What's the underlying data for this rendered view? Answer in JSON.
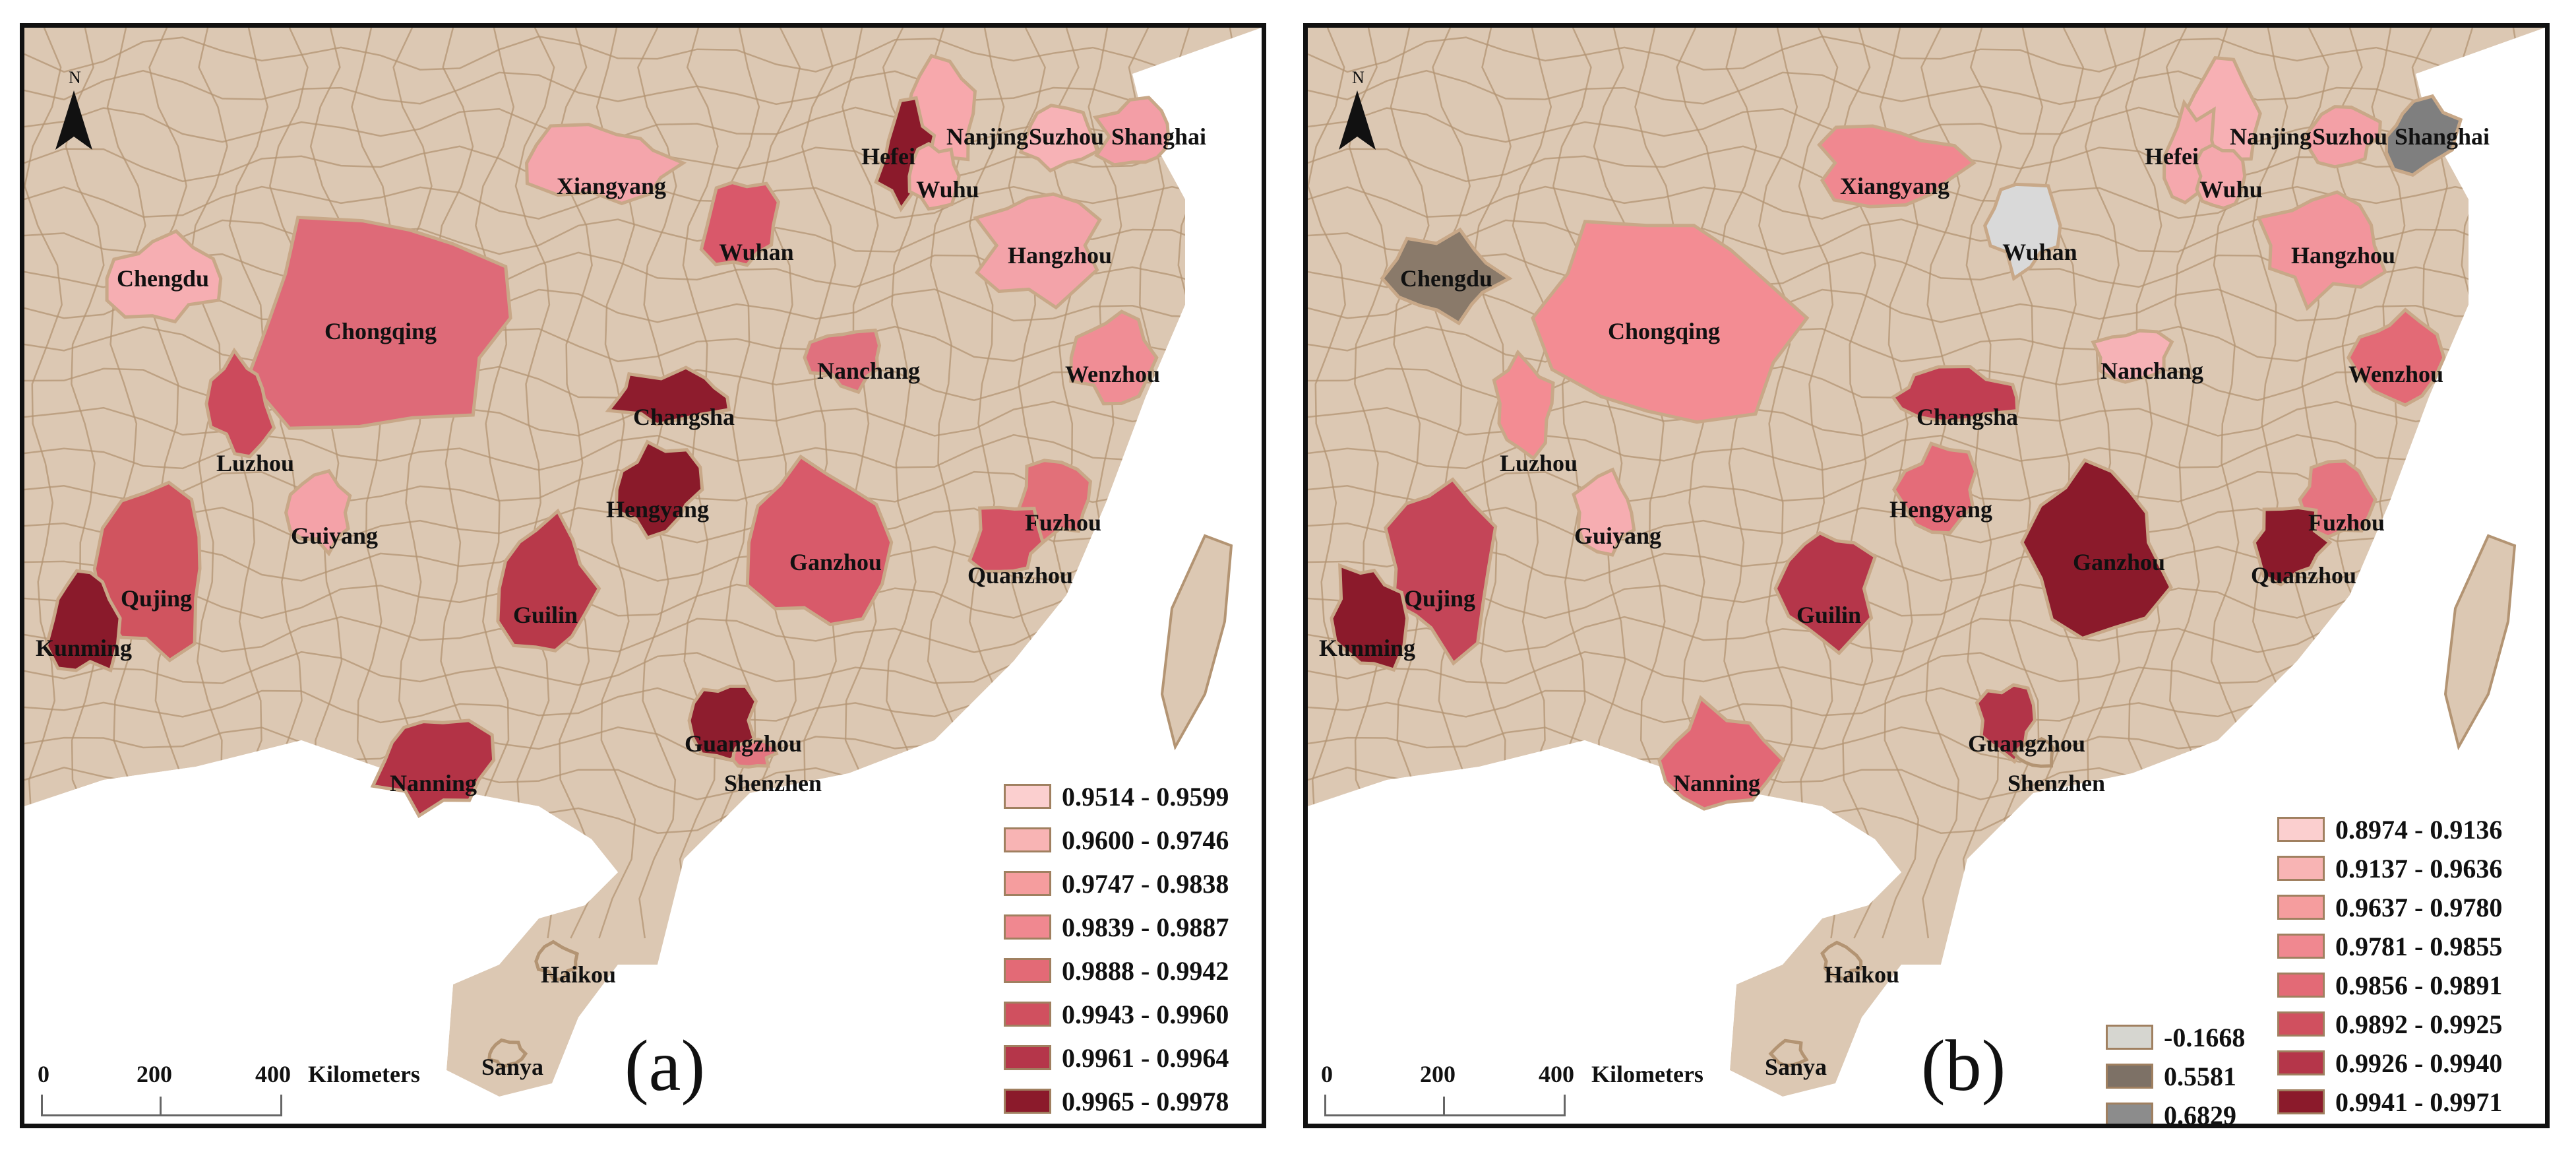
{
  "north_label": "N",
  "scale": {
    "ticks": [
      "0",
      "200",
      "400"
    ],
    "unit": "Kilometers"
  },
  "colors": {
    "base": "#dcc8b3",
    "border": "#b39473",
    "sea": "#ffffff"
  },
  "panels": [
    {
      "letter": "(a)",
      "cities": [
        {
          "name": "Nanjing",
          "color": "#f7a8ac"
        },
        {
          "name": "Hefei",
          "color": "#8b1a2b"
        },
        {
          "name": "Wuhu",
          "color": "#f7a8ac"
        },
        {
          "name": "Suzhou",
          "color": "#f7b2b6"
        },
        {
          "name": "Shanghai",
          "color": "#f39ea6"
        },
        {
          "name": "Xiangyang",
          "color": "#f4a5ab"
        },
        {
          "name": "Wuhan",
          "color": "#d9586a"
        },
        {
          "name": "Hangzhou",
          "color": "#f3a3a9"
        },
        {
          "name": "Chengdu",
          "color": "#f6aeb2"
        },
        {
          "name": "Chongqing",
          "color": "#de6a78"
        },
        {
          "name": "Nanchang",
          "color": "#e0717e"
        },
        {
          "name": "Wenzhou",
          "color": "#f08d95"
        },
        {
          "name": "Changsha",
          "color": "#8e1c2d"
        },
        {
          "name": "Luzhou",
          "color": "#cc4a5c"
        },
        {
          "name": "Hengyang",
          "color": "#8a1a2a"
        },
        {
          "name": "Fuzhou",
          "color": "#e27079"
        },
        {
          "name": "Guiyang",
          "color": "#f4a2a8"
        },
        {
          "name": "Ganzhou",
          "color": "#d85a6a"
        },
        {
          "name": "Quanzhou",
          "color": "#d35264"
        },
        {
          "name": "Qujing",
          "color": "#d0545f"
        },
        {
          "name": "Guilin",
          "color": "#b8394a"
        },
        {
          "name": "Kunming",
          "color": "#8a1a2b"
        },
        {
          "name": "Guangzhou",
          "color": "#8e1d2e"
        },
        {
          "name": "Shenzhen",
          "color": "#e37680"
        },
        {
          "name": "Nanning",
          "color": "#b33346"
        },
        {
          "name": "Haikou",
          "color": "#dcc8b3"
        },
        {
          "name": "Sanya",
          "color": "#dcc8b3"
        }
      ],
      "legend": [
        {
          "label": "0.9514 - 0.9599",
          "color": "#fbcfcf"
        },
        {
          "label": "0.9600 - 0.9746",
          "color": "#f8b4b4"
        },
        {
          "label": "0.9747 - 0.9838",
          "color": "#f59d9e"
        },
        {
          "label": "0.9839 - 0.9887",
          "color": "#f08890"
        },
        {
          "label": "0.9888 - 0.9942",
          "color": "#e36a76"
        },
        {
          "label": "0.9943 - 0.9960",
          "color": "#d0505f"
        },
        {
          "label": "0.9961 - 0.9964",
          "color": "#b5364a"
        },
        {
          "label": "0.9965 - 0.9978",
          "color": "#8b1a2b"
        }
      ]
    },
    {
      "letter": "(b)",
      "cities": [
        {
          "name": "Nanjing",
          "color": "#f7b0b4"
        },
        {
          "name": "Hefei",
          "color": "#f5a8ad"
        },
        {
          "name": "Wuhu",
          "color": "#f5a8ad"
        },
        {
          "name": "Suzhou",
          "color": "#f3a0a6"
        },
        {
          "name": "Shanghai",
          "color": "#7f7f7f"
        },
        {
          "name": "Xiangyang",
          "color": "#f08890"
        },
        {
          "name": "Wuhan",
          "color": "#d9d9d9"
        },
        {
          "name": "Hangzhou",
          "color": "#f2959c"
        },
        {
          "name": "Chengdu",
          "color": "#8a7a6a"
        },
        {
          "name": "Chongqing",
          "color": "#f38c93"
        },
        {
          "name": "Nanchang",
          "color": "#f6b2b6"
        },
        {
          "name": "Wenzhou",
          "color": "#e36a76"
        },
        {
          "name": "Changsha",
          "color": "#c13e52"
        },
        {
          "name": "Luzhou",
          "color": "#f38c93"
        },
        {
          "name": "Hengyang",
          "color": "#e46c79"
        },
        {
          "name": "Fuzhou",
          "color": "#e57580"
        },
        {
          "name": "Guiyang",
          "color": "#f6adb1"
        },
        {
          "name": "Ganzhou",
          "color": "#8b1a2b"
        },
        {
          "name": "Quanzhou",
          "color": "#8b1a2b"
        },
        {
          "name": "Qujing",
          "color": "#c44558"
        },
        {
          "name": "Guilin",
          "color": "#b5364a"
        },
        {
          "name": "Kunming",
          "color": "#8b1a2b"
        },
        {
          "name": "Guangzhou",
          "color": "#b23448"
        },
        {
          "name": "Shenzhen",
          "color": "#dcc8b3"
        },
        {
          "name": "Nanning",
          "color": "#e26876"
        },
        {
          "name": "Haikou",
          "color": "#dcc8b3"
        },
        {
          "name": "Sanya",
          "color": "#dcc8b3"
        }
      ],
      "legend_gray": [
        {
          "label": "-0.1668",
          "color": "#d6d6d0"
        },
        {
          "label": "0.5581",
          "color": "#7d7166"
        },
        {
          "label": "0.6829",
          "color": "#8c8c8c"
        }
      ],
      "legend": [
        {
          "label": "0.8974 - 0.9136",
          "color": "#fbcfcf"
        },
        {
          "label": "0.9137 - 0.9636",
          "color": "#f8b4b4"
        },
        {
          "label": "0.9637 - 0.9780",
          "color": "#f59d9e"
        },
        {
          "label": "0.9781 - 0.9855",
          "color": "#f08890"
        },
        {
          "label": "0.9856 - 0.9891",
          "color": "#e36a76"
        },
        {
          "label": "0.9892 - 0.9925",
          "color": "#d0505f"
        },
        {
          "label": "0.9926 - 0.9940",
          "color": "#b5364a"
        },
        {
          "label": "0.9941 - 0.9971",
          "color": "#8b1a2b"
        }
      ]
    }
  ]
}
